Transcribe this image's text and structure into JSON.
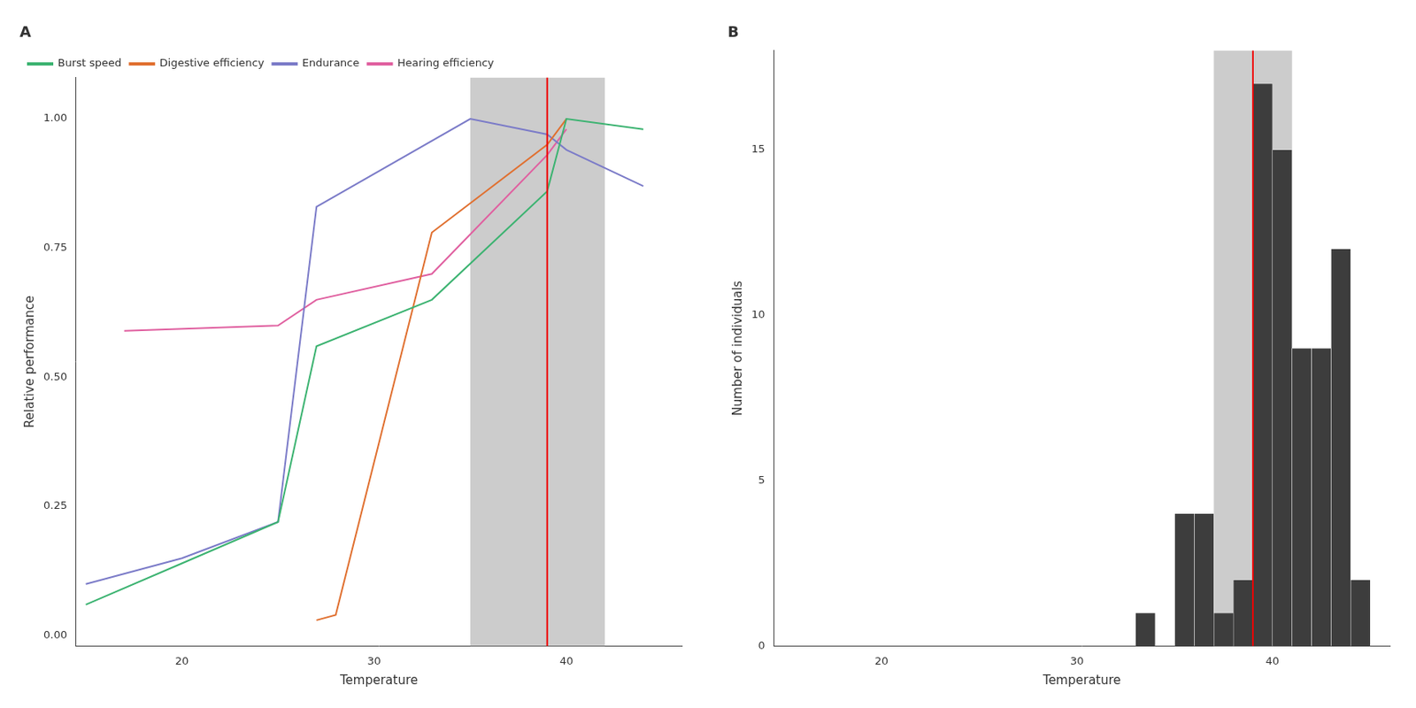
{
  "chart_data": [
    {
      "type": "line",
      "title": "A",
      "xlabel": "Temperature",
      "ylabel": "Relative performance",
      "xlim": [
        14.5,
        46
      ],
      "ylim": [
        -0.02,
        1.08
      ],
      "xticks": [
        20,
        30,
        40
      ],
      "yticks": [
        {
          "value": 0,
          "label": "0.00"
        },
        0.25,
        {
          "value": 0.5,
          "label": "0.50"
        },
        0.75,
        {
          "value": 1,
          "label": "1.00"
        }
      ],
      "grid": false,
      "legend": "upper left",
      "series": [
        {
          "name": "Burst speed",
          "color": "#3CB371",
          "x": [
            15,
            20,
            25,
            27,
            33,
            39,
            40,
            44
          ],
          "values": [
            0.06,
            0.14,
            0.22,
            0.56,
            0.65,
            0.86,
            1.0,
            0.98
          ]
        },
        {
          "name": "Digestive efficiency",
          "color": "#E07030",
          "x": [
            27,
            28,
            33,
            39,
            40
          ],
          "values": [
            0.03,
            0.04,
            0.78,
            0.95,
            1.0
          ]
        },
        {
          "name": "Endurance",
          "color": "#7B7BC8",
          "x": [
            15,
            20,
            25,
            27,
            35,
            39,
            40,
            44
          ],
          "values": [
            0.1,
            0.15,
            0.22,
            0.83,
            1.0,
            0.97,
            0.94,
            0.87
          ]
        },
        {
          "name": "Hearing efficiency",
          "color": "#E060A0",
          "x": [
            17,
            25,
            27,
            33,
            39,
            40
          ],
          "values": [
            0.59,
            0.6,
            0.65,
            0.7,
            0.93,
            0.98
          ]
        }
      ],
      "shade": {
        "x": [
          35,
          42
        ],
        "color": "#CCCCCC"
      },
      "vline": {
        "x": 39,
        "color": "#EE0000"
      }
    },
    {
      "type": "histogram",
      "title": "B",
      "xlabel": "Temperature",
      "ylabel": "Number of individuals",
      "xlim": [
        14.5,
        46
      ],
      "ylim": [
        0,
        18
      ],
      "xticks": [
        20,
        30,
        40
      ],
      "yticks": [
        0,
        5,
        10,
        15
      ],
      "grid": false,
      "bins": [
        33,
        34,
        35,
        36,
        37,
        38,
        39,
        40,
        41,
        42,
        43,
        44,
        45
      ],
      "values": [
        1,
        0,
        4,
        4,
        1,
        2,
        17,
        15,
        9,
        9,
        12,
        2
      ],
      "color": "#3d3d3d",
      "shade": {
        "x": [
          37,
          41
        ],
        "color": "#CCCCCC"
      },
      "vline": {
        "x": 39,
        "color": "#EE0000"
      }
    }
  ]
}
